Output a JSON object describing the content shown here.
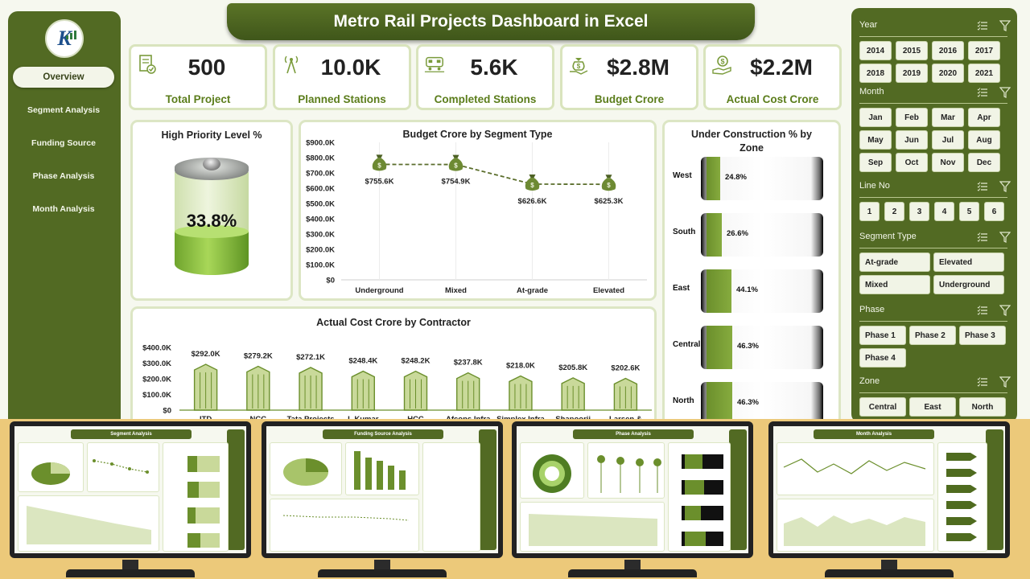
{
  "title": "Metro Rail Projects Dashboard in Excel",
  "nav": {
    "items": [
      {
        "label": "Overview",
        "active": true
      },
      {
        "label": "Segment Analysis",
        "active": false
      },
      {
        "label": "Funding Source",
        "active": false
      },
      {
        "label": "Phase Analysis",
        "active": false
      },
      {
        "label": "Month Analysis",
        "active": false
      }
    ]
  },
  "kpis": [
    {
      "value": "500",
      "label": "Total Project",
      "icon": "document-check-icon"
    },
    {
      "value": "10.0K",
      "label": "Planned Stations",
      "icon": "antenna-tower-icon"
    },
    {
      "value": "5.6K",
      "label": "Completed Stations",
      "icon": "train-icon"
    },
    {
      "value": "$2.8M",
      "label": "Budget Crore",
      "icon": "money-bag-hand-icon"
    },
    {
      "value": "$2.2M",
      "label": "Actual Cost Crore",
      "icon": "dollar-hand-icon"
    }
  ],
  "high_priority": {
    "title": "High Priority Level %",
    "value": "33.8%",
    "fraction": 0.338
  },
  "colors": {
    "accent": "#526a23",
    "kpi_label": "#5b7d1b",
    "bar_fill": "#c9d99a",
    "bar_stroke": "#6b8f2c",
    "bottom_bg": "#ecc97a"
  },
  "chart_data": [
    {
      "type": "line",
      "title": "Budget Crore by Segment Type",
      "categories": [
        "Underground",
        "Mixed",
        "At-grade",
        "Elevated"
      ],
      "values": [
        755.6,
        754.9,
        626.6,
        625.3
      ],
      "data_labels": [
        "$755.6K",
        "$754.9K",
        "$626.6K",
        "$625.3K"
      ],
      "y_ticks": [
        "$0",
        "$100.0K",
        "$200.0K",
        "$300.0K",
        "$400.0K",
        "$500.0K",
        "$600.0K",
        "$700.0K",
        "$800.0K",
        "$900.0K"
      ],
      "ylim": [
        0,
        900
      ],
      "marker": "money-bag-icon"
    },
    {
      "type": "bar",
      "title": "Actual Cost Crore by Contractor",
      "categories": [
        "ITD",
        "NCC",
        "Tata Projects",
        "L Kumar",
        "HCC",
        "Afcons Infra",
        "Simplex Infra",
        "Shapoorji",
        "Larsen &"
      ],
      "values": [
        292.0,
        279.2,
        272.1,
        248.4,
        248.2,
        237.8,
        218.0,
        205.8,
        202.6
      ],
      "data_labels": [
        "$292.0K",
        "$279.2K",
        "$272.1K",
        "$248.4K",
        "$248.2K",
        "$237.8K",
        "$218.0K",
        "$205.8K",
        "$202.6K"
      ],
      "y_ticks": [
        "$0",
        "$100.0K",
        "$200.0K",
        "$300.0K",
        "$400.0K"
      ],
      "ylim": [
        0,
        400
      ]
    },
    {
      "type": "bar",
      "title": "Under Construction % by Zone",
      "categories": [
        "West",
        "South",
        "East",
        "Central",
        "North"
      ],
      "values": [
        24.8,
        26.6,
        44.1,
        46.3,
        46.3
      ],
      "data_labels": [
        "24.8%",
        "26.6%",
        "44.1%",
        "46.3%",
        "46.3%"
      ]
    }
  ],
  "slicers": [
    {
      "title": "Year",
      "items": [
        "2014",
        "2015",
        "2016",
        "2017",
        "2018",
        "2019",
        "2020",
        "2021"
      ]
    },
    {
      "title": "Month",
      "items": [
        "Jan",
        "Feb",
        "Mar",
        "Apr",
        "May",
        "Jun",
        "Jul",
        "Aug",
        "Sep",
        "Oct",
        "Nov",
        "Dec"
      ]
    },
    {
      "title": "Line No",
      "items": [
        "1",
        "2",
        "3",
        "4",
        "5",
        "6"
      ]
    },
    {
      "title": "Segment Type",
      "items": [
        "At-grade",
        "Elevated",
        "Mixed",
        "Underground"
      ]
    },
    {
      "title": "Phase",
      "items": [
        "Phase 1",
        "Phase 2",
        "Phase 3",
        "Phase 4"
      ]
    },
    {
      "title": "Zone",
      "items": [
        "Central",
        "East",
        "North"
      ]
    }
  ],
  "previews": [
    {
      "title": "Segment Analysis"
    },
    {
      "title": "Funding Source Analysis"
    },
    {
      "title": "Phase Analysis"
    },
    {
      "title": "Month Analysis"
    }
  ]
}
